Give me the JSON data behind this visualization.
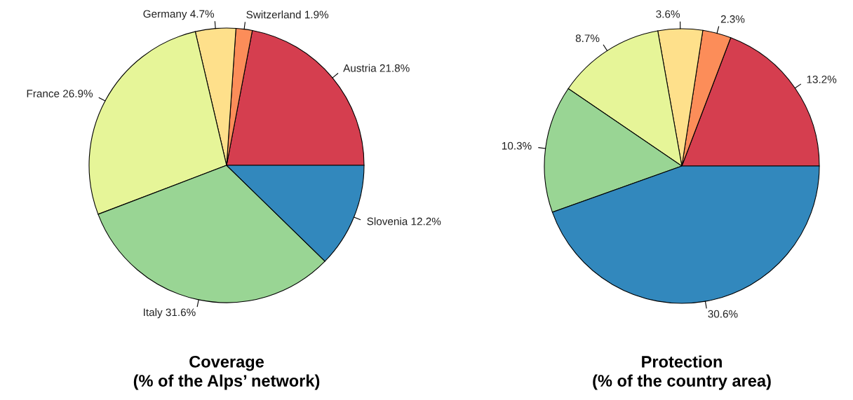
{
  "chart_data": [
    {
      "type": "pie",
      "title": "Coverage\n(% of the Alps’ network)",
      "categories": [
        "Austria",
        "Switzerland",
        "Germany",
        "France",
        "Italy",
        "Slovenia"
      ],
      "values": [
        21.8,
        1.9,
        4.7,
        26.9,
        31.6,
        12.2
      ],
      "value_labels": [
        "21.8%",
        "1.9%",
        "4.7%",
        "26.9%",
        "31.6%",
        "12.2%"
      ],
      "colors": [
        "#d53e4f",
        "#fc8d59",
        "#fee08b",
        "#e6f598",
        "#99d594",
        "#3288bd"
      ]
    },
    {
      "type": "pie",
      "title": "Protection\n(% of the country area)",
      "categories": [
        null,
        null,
        null,
        null,
        null,
        null
      ],
      "values": [
        13.2,
        2.3,
        3.6,
        8.7,
        10.3,
        30.6
      ],
      "value_labels": [
        "13.2%",
        "2.3%",
        "3.6%",
        "8.7%",
        "10.3%",
        "30.6%"
      ],
      "colors": [
        "#d53e4f",
        "#fc8d59",
        "#fee08b",
        "#e6f598",
        "#99d594",
        "#3288bd"
      ]
    }
  ]
}
